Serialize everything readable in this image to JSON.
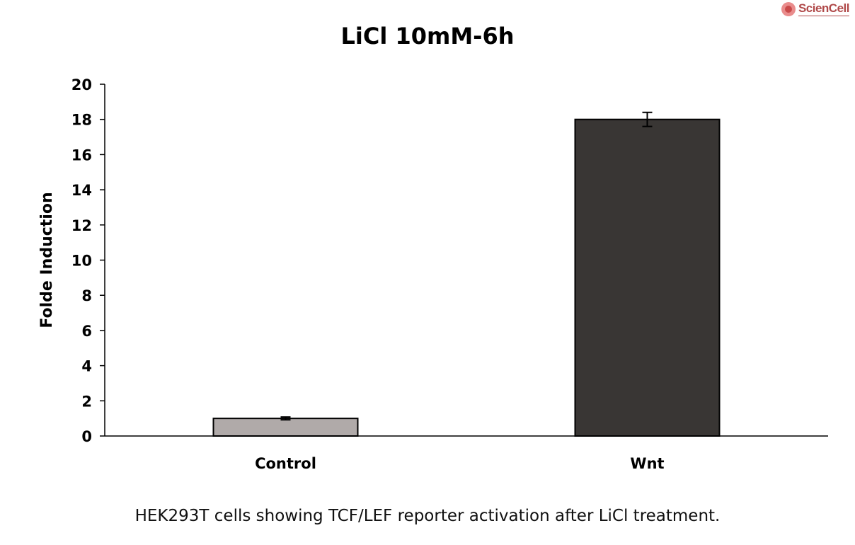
{
  "logo": {
    "text": "ScienCell"
  },
  "caption": "HEK293T cells showing TCF/LEF reporter activation after LiCl treatment.",
  "chart_data": {
    "type": "bar",
    "title": "LiCl 10mM-6h",
    "xlabel": "",
    "ylabel": "Folde Induction",
    "categories": [
      "Control",
      "Wnt"
    ],
    "values": [
      1.0,
      18.0
    ],
    "errors": [
      0.08,
      0.4
    ],
    "colors": [
      "#b0aaa9",
      "#393634"
    ],
    "ylim": [
      0,
      20
    ],
    "yticks": [
      0,
      2,
      4,
      6,
      8,
      10,
      12,
      14,
      16,
      18,
      20
    ],
    "grid": false,
    "legend": "none"
  }
}
